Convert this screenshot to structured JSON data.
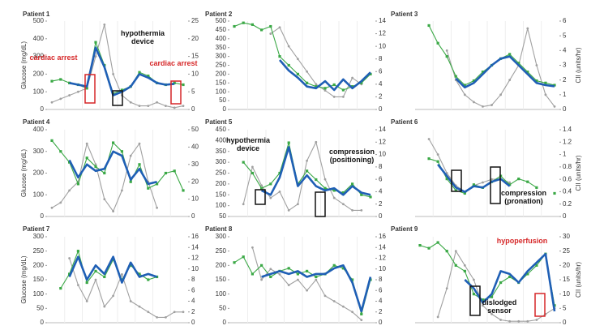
{
  "chart_data": [
    {
      "type": "line",
      "title": "Patient 1",
      "y_label": "Glucose (mg/dL)",
      "ylim": [
        0,
        500
      ],
      "yticks": [
        0,
        100,
        200,
        300,
        400,
        500
      ],
      "y2lim": [
        0,
        25
      ],
      "y2ticks": [
        0,
        5,
        10,
        15,
        20,
        25
      ],
      "series": [
        {
          "color": "#3aa845",
          "values": [
            160,
            170,
            150,
            140,
            120,
            380,
            250,
            90,
            110,
            130,
            210,
            190,
            150,
            140,
            150,
            140
          ]
        },
        {
          "color": "#1f5fb5",
          "values": [
            null,
            null,
            150,
            140,
            130,
            350,
            240,
            80,
            100,
            130,
            200,
            180,
            150,
            140,
            145,
            null
          ]
        },
        {
          "color": "#a0a0a0",
          "axis": "y2",
          "values": [
            2,
            3,
            4,
            5,
            6,
            15,
            24,
            10,
            4,
            2,
            1,
            1,
            2,
            1,
            0.5,
            1
          ]
        }
      ],
      "annotations": [
        {
          "text": "cardiac arrest",
          "color": "#d62728"
        },
        {
          "text": "hypothermia device",
          "color": "#111111"
        },
        {
          "text": "cardiac arrest",
          "color": "#d62728"
        }
      ]
    },
    {
      "type": "line",
      "title": "Patient 2",
      "ylim": [
        0,
        500
      ],
      "yticks": [
        0,
        50,
        100,
        150,
        200,
        250,
        300,
        350,
        400,
        450,
        500
      ],
      "y2lim": [
        0,
        14
      ],
      "y2ticks": [
        0,
        2,
        4,
        6,
        8,
        10,
        12,
        14
      ],
      "series": [
        {
          "color": "#3aa845",
          "values": [
            470,
            490,
            480,
            450,
            470,
            300,
            250,
            200,
            150,
            130,
            120,
            140,
            110,
            130,
            150,
            200
          ]
        },
        {
          "color": "#1f5fb5",
          "values": [
            null,
            null,
            null,
            null,
            null,
            280,
            220,
            180,
            130,
            120,
            160,
            110,
            170,
            120,
            160,
            210
          ]
        },
        {
          "color": "#a0a0a0",
          "axis": "y2",
          "values": [
            null,
            null,
            null,
            null,
            12,
            13,
            10,
            8,
            6,
            4,
            3,
            2,
            2,
            5,
            4,
            null
          ]
        }
      ],
      "annotations": []
    },
    {
      "type": "line",
      "title": "Patient 3",
      "y2_label": "CII (units/hr)",
      "ylim": [
        0,
        400
      ],
      "y2lim": [
        0,
        6
      ],
      "y2ticks": [
        0,
        1,
        2,
        3,
        4,
        5,
        6
      ],
      "series": [
        {
          "color": "#3aa845",
          "values": [
            null,
            380,
            300,
            240,
            150,
            110,
            130,
            170,
            200,
            230,
            250,
            210,
            170,
            130,
            120,
            110
          ]
        },
        {
          "color": "#1f5fb5",
          "values": [
            null,
            null,
            null,
            null,
            140,
            100,
            120,
            160,
            200,
            230,
            240,
            200,
            160,
            120,
            110,
            105
          ]
        },
        {
          "color": "#a0a0a0",
          "axis": "y2",
          "values": [
            null,
            null,
            null,
            4,
            2,
            1,
            0.5,
            0.2,
            0.3,
            1,
            2,
            3,
            5.5,
            3,
            1,
            0.2
          ]
        }
      ],
      "annotations": []
    },
    {
      "type": "line",
      "title": "Patient 4",
      "y_label": "Glucose (mg/dL)",
      "ylim": [
        0,
        400
      ],
      "yticks": [
        0,
        100,
        200,
        300,
        400
      ],
      "y2lim": [
        0,
        50
      ],
      "y2ticks": [
        0,
        10,
        20,
        30,
        40,
        50
      ],
      "series": [
        {
          "color": "#3aa845",
          "values": [
            350,
            300,
            250,
            150,
            270,
            230,
            200,
            340,
            300,
            160,
            240,
            130,
            150,
            200,
            210,
            120
          ]
        },
        {
          "color": "#1f5fb5",
          "values": [
            null,
            null,
            260,
            180,
            240,
            210,
            220,
            300,
            280,
            170,
            220,
            150,
            160,
            null,
            null,
            null
          ]
        },
        {
          "color": "#a0a0a0",
          "axis": "y2",
          "values": [
            5,
            8,
            15,
            20,
            42,
            30,
            10,
            3,
            15,
            35,
            42,
            20,
            5,
            null,
            null,
            null
          ]
        }
      ],
      "annotations": []
    },
    {
      "type": "line",
      "title": "Patient 5",
      "ylim": [
        50,
        450
      ],
      "yticks": [
        50,
        100,
        150,
        200,
        250,
        300,
        350,
        400,
        450
      ],
      "y2lim": [
        0,
        14
      ],
      "y2ticks": [
        0,
        2,
        4,
        6,
        8,
        10,
        12,
        14
      ],
      "series": [
        {
          "color": "#3aa845",
          "values": [
            null,
            300,
            250,
            180,
            200,
            250,
            390,
            200,
            260,
            220,
            180,
            170,
            160,
            200,
            150,
            140
          ]
        },
        {
          "color": "#1f5fb5",
          "values": [
            null,
            null,
            null,
            170,
            150,
            230,
            370,
            190,
            240,
            190,
            170,
            180,
            150,
            190,
            160,
            150
          ]
        },
        {
          "color": "#a0a0a0",
          "axis": "y2",
          "values": [
            null,
            2,
            8,
            5,
            3,
            4,
            1,
            2,
            9,
            12,
            6,
            3,
            2,
            1,
            1,
            null
          ]
        }
      ],
      "annotations": [
        {
          "text": "hypothermia device",
          "color": "#111111"
        },
        {
          "text": "compression (positioning)",
          "color": "#111111"
        }
      ]
    },
    {
      "type": "line",
      "title": "Patient 6",
      "y2_label": "CII (units/hr)",
      "ylim": [
        0,
        300
      ],
      "y2lim": [
        0,
        1.4
      ],
      "y2ticks": [
        0,
        0.2,
        0.4,
        0.6,
        0.8,
        1,
        1.2,
        1.4
      ],
      "series": [
        {
          "color": "#3aa845",
          "values": [
            null,
            200,
            190,
            130,
            90,
            80,
            110,
            100,
            120,
            140,
            110,
            130,
            120,
            100,
            null,
            80
          ]
        },
        {
          "color": "#1f5fb5",
          "values": [
            null,
            null,
            180,
            140,
            100,
            85,
            105,
            100,
            120,
            130,
            105,
            null,
            null,
            null,
            null,
            null
          ]
        },
        {
          "color": "#a0a0a0",
          "axis": "y2",
          "values": [
            null,
            1.25,
            1.0,
            0.7,
            0.5,
            0.4,
            0.5,
            0.55,
            0.6,
            0.6,
            0.55,
            null,
            null,
            null,
            null,
            null
          ]
        }
      ],
      "annotations": [
        {
          "text": "compression (pronation)",
          "color": "#111111"
        }
      ]
    },
    {
      "type": "line",
      "title": "Patient 7",
      "y_label": "Glucose (mg/dL)",
      "ylim": [
        0,
        300
      ],
      "yticks": [
        0,
        50,
        100,
        150,
        200,
        250,
        300
      ],
      "y2lim": [
        0,
        16
      ],
      "y2ticks": [
        0,
        2,
        4,
        6,
        8,
        10,
        12,
        14,
        16
      ],
      "series": [
        {
          "color": "#3aa845",
          "values": [
            null,
            120,
            170,
            250,
            140,
            180,
            160,
            220,
            150,
            200,
            170,
            150,
            160,
            null,
            null,
            null
          ]
        },
        {
          "color": "#1f5fb5",
          "values": [
            null,
            null,
            160,
            230,
            150,
            200,
            170,
            230,
            140,
            210,
            160,
            170,
            160,
            null,
            null,
            null
          ]
        },
        {
          "color": "#a0a0a0",
          "axis": "y2",
          "values": [
            null,
            null,
            12,
            7,
            4,
            8,
            3,
            5,
            9,
            4,
            3,
            2,
            1,
            1,
            2,
            2
          ]
        }
      ],
      "annotations": []
    },
    {
      "type": "line",
      "title": "Patient 8",
      "ylim": [
        0,
        300
      ],
      "yticks": [
        0,
        50,
        100,
        150,
        200,
        250,
        300
      ],
      "y2lim": [
        0,
        16
      ],
      "y2ticks": [
        0,
        2,
        4,
        6,
        8,
        10,
        12,
        14,
        16
      ],
      "series": [
        {
          "color": "#3aa845",
          "values": [
            210,
            230,
            170,
            200,
            160,
            180,
            190,
            170,
            180,
            160,
            170,
            200,
            190,
            150,
            30,
            150
          ]
        },
        {
          "color": "#1f5fb5",
          "values": [
            null,
            null,
            null,
            160,
            170,
            180,
            170,
            180,
            160,
            170,
            170,
            190,
            200,
            140,
            40,
            160
          ]
        },
        {
          "color": "#a0a0a0",
          "axis": "y2",
          "values": [
            null,
            null,
            14,
            8,
            10,
            9,
            7,
            8,
            6,
            8,
            5,
            4,
            3,
            2,
            0.5,
            null
          ]
        }
      ],
      "annotations": []
    },
    {
      "type": "line",
      "title": "Patient 9",
      "y2_label": "CII (units/hr)",
      "ylim": [
        0,
        300
      ],
      "y2lim": [
        0,
        30
      ],
      "y2ticks": [
        0,
        5,
        10,
        15,
        20,
        25,
        30
      ],
      "series": [
        {
          "color": "#3aa845",
          "values": [
            270,
            260,
            280,
            250,
            200,
            180,
            100,
            80,
            90,
            140,
            160,
            140,
            170,
            200,
            240,
            60
          ]
        },
        {
          "color": "#1f5fb5",
          "values": [
            null,
            null,
            null,
            null,
            null,
            150,
            120,
            70,
            100,
            180,
            170,
            140,
            180,
            210,
            240,
            40
          ]
        },
        {
          "color": "#a0a0a0",
          "axis": "y2",
          "values": [
            null,
            null,
            2,
            12,
            25,
            20,
            15,
            6,
            3,
            1,
            0.5,
            0.5,
            0.5,
            1,
            3,
            5
          ]
        }
      ],
      "annotations": [
        {
          "text": "hypoperfusion",
          "color": "#d62728"
        },
        {
          "text": "dislodged sensor",
          "color": "#111111"
        }
      ]
    }
  ]
}
